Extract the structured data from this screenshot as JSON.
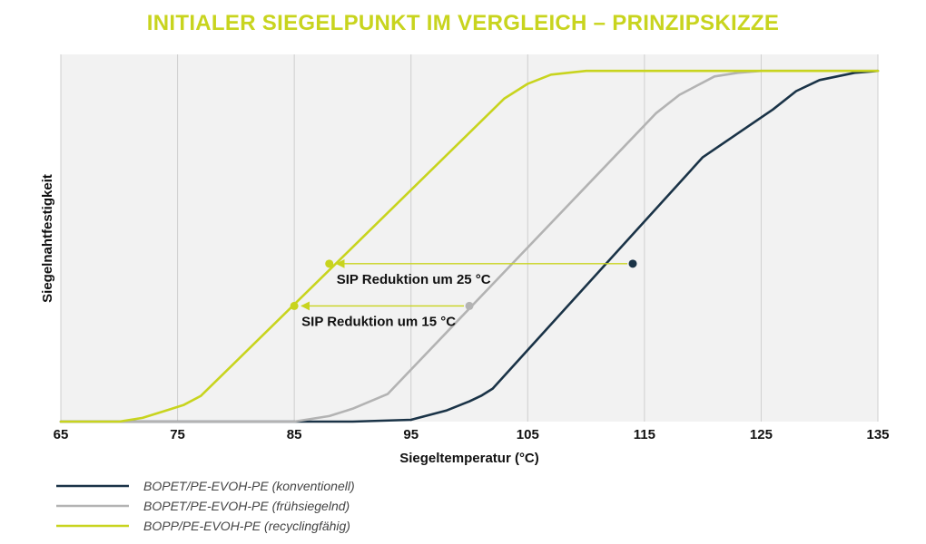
{
  "chart_data": {
    "type": "line",
    "title": "INITIALER SIEGELPUNKT IM VERGLEICH – PRINZIPSKIZZE",
    "xlabel": "Siegeltemperatur (°C)",
    "ylabel": "Siegelnahtfestigkeit",
    "xlim": [
      65,
      135
    ],
    "ylim": [
      0,
      100
    ],
    "x_ticks": [
      "65",
      "75",
      "85",
      "95",
      "105",
      "115",
      "125",
      "135"
    ],
    "grid": "vertical",
    "legend_position": "bottom-left",
    "series": [
      {
        "name": "BOPET/PE-EVOH-PE (konventionell)",
        "color": "#1a3347",
        "x": [
          65,
          90,
          95,
          98,
          100,
          101,
          102,
          120,
          126,
          128,
          130,
          133,
          135
        ],
        "y": [
          0,
          0,
          0.5,
          3,
          5.5,
          7,
          9,
          72,
          85,
          90,
          93,
          95,
          95.5
        ]
      },
      {
        "name": "BOPET/PE-EVOH-PE (frühsiegelnd)",
        "color": "#b3b3b3",
        "x": [
          65,
          85,
          88,
          90,
          91.5,
          93,
          116,
          118,
          121,
          123,
          125,
          135
        ],
        "y": [
          0,
          0,
          1.5,
          3.5,
          5.5,
          7.5,
          84,
          89,
          94,
          95,
          95.5,
          95.5
        ]
      },
      {
        "name": "BOPP/PE-EVOH-PE (recyclingfähig)",
        "color": "#c8d41e",
        "x": [
          65,
          70,
          72,
          74,
          75.5,
          77,
          103,
          105,
          107,
          110,
          135
        ],
        "y": [
          0,
          0,
          1,
          3,
          4.5,
          7,
          88,
          92,
          94.5,
          95.5,
          95.5
        ]
      }
    ],
    "annotations": [
      {
        "text": "SIP Reduktion um 25 °C",
        "arrow_from": [
          114,
          43
        ],
        "arrow_to": [
          88,
          43
        ],
        "start_color": "#1a3347",
        "end_color": "#c8d41e"
      },
      {
        "text": "SIP Reduktion um 15 °C",
        "arrow_from": [
          100,
          31.5
        ],
        "arrow_to": [
          85,
          31.5
        ],
        "start_color": "#b3b3b3",
        "end_color": "#c8d41e"
      }
    ]
  }
}
